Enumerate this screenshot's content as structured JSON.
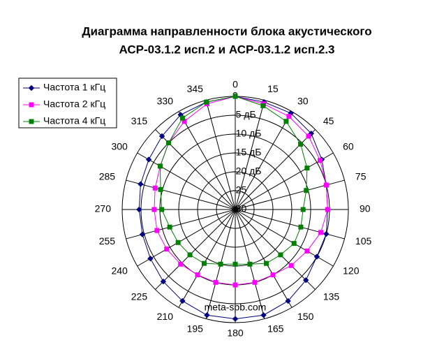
{
  "chart_data": {
    "type": "polar",
    "title": [
      "Диаграмма направленности блока акустического",
      "АСР-03.1.2 исп.2 и АСР-03.1.2 исп.2.3"
    ],
    "footer": "meta-spb.com",
    "categories": [
      "0",
      "15",
      "30",
      "45",
      "60",
      "75",
      "90",
      "105",
      "120",
      "135",
      "150",
      "165",
      "180",
      "195",
      "210",
      "225",
      "240",
      "255",
      "270",
      "285",
      "300",
      "315",
      "330",
      "345"
    ],
    "rlim": [
      -30,
      0
    ],
    "rticks": [
      0,
      {
        "value": -5,
        "label": "-5 дБ"
      },
      {
        "value": -10,
        "label": "-10 дБ"
      },
      {
        "value": -15,
        "label": "-15 дБ"
      },
      {
        "value": -20,
        "label": "-20 дБ"
      },
      -25,
      -30
    ],
    "grid": true,
    "legend": "top-left",
    "series": [
      {
        "name": "Частота 1 кГц",
        "color": "#000080",
        "marker": "diamond",
        "values": [
          0,
          -0.5,
          -0.5,
          -1.5,
          -3.5,
          -5,
          -5.5,
          -5,
          -5,
          -3.5,
          -2,
          -1,
          -1,
          -1,
          -2,
          -3,
          -4,
          -4.5,
          -4.5,
          -4,
          -3.5,
          -2.5,
          -1,
          -0.5
        ]
      },
      {
        "name": "Частота 2 кГц",
        "color": "#ff00ff",
        "marker": "square",
        "values": [
          0,
          -1,
          -1.5,
          -2.5,
          -4,
          -5,
          -5.5,
          -6.5,
          -8,
          -9,
          -10,
          -10,
          -10,
          -10,
          -10,
          -9.5,
          -9,
          -8.5,
          -8.5,
          -8,
          -7,
          -5,
          -3,
          -1
        ]
      },
      {
        "name": "Частота 4 кГц",
        "color": "#008000",
        "marker": "square",
        "values": [
          0,
          -1.5,
          -3,
          -5.5,
          -8,
          -10.5,
          -12,
          -12,
          -12,
          -13,
          -13.5,
          -15,
          -15.5,
          -15,
          -13.5,
          -13,
          -12.5,
          -12,
          -10.5,
          -9.5,
          -7,
          -5,
          -2,
          -0.5
        ]
      }
    ]
  }
}
